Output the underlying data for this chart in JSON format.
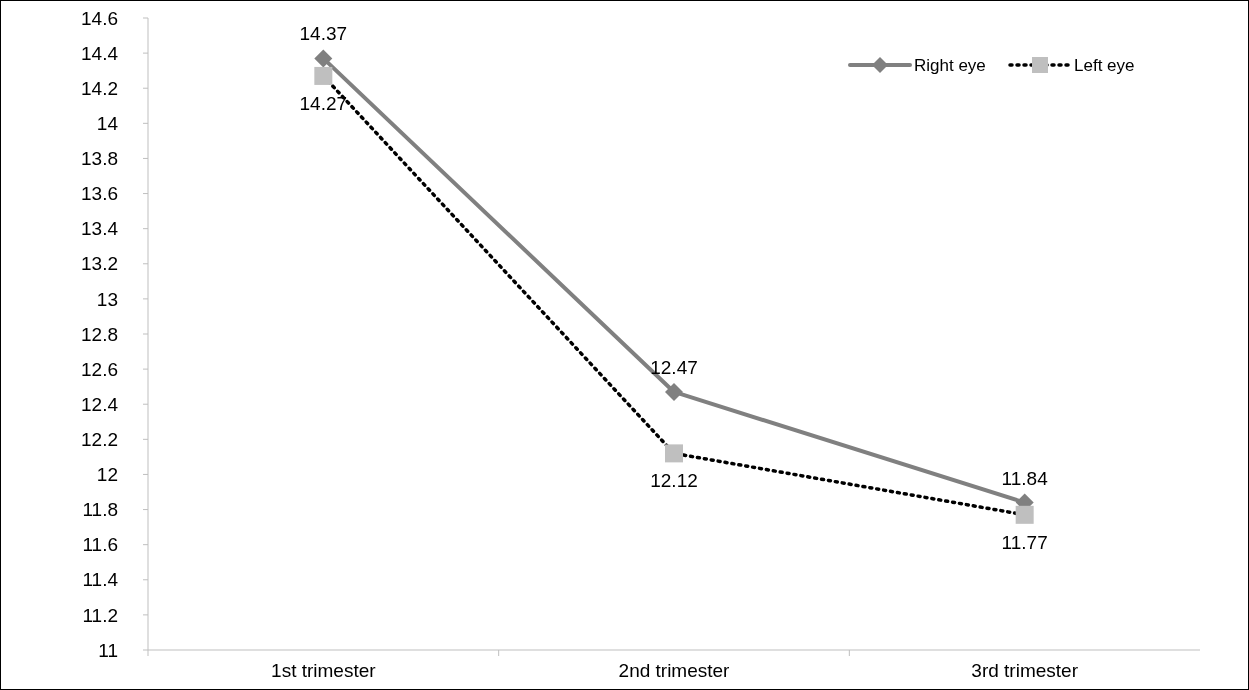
{
  "chart_data": {
    "type": "line",
    "categories": [
      "1st trimester",
      "2nd trimester",
      "3rd trimester"
    ],
    "series": [
      {
        "name": "Right eye",
        "color": "#808080",
        "values": [
          14.37,
          12.47,
          11.84
        ],
        "marker": "diamond",
        "line_style": "solid"
      },
      {
        "name": "Left eye",
        "color": "#000000",
        "values": [
          14.27,
          12.12,
          11.77
        ],
        "marker": "square",
        "line_style": "dotted"
      }
    ],
    "ylim": [
      11,
      14.6
    ],
    "yticks": [
      11,
      11.2,
      11.4,
      11.6,
      11.8,
      12,
      12.2,
      12.4,
      12.6,
      12.8,
      13,
      13.2,
      13.4,
      13.6,
      13.8,
      14,
      14.2,
      14.4,
      14.6
    ],
    "data_labels": true,
    "legend": "top right",
    "grid": false
  }
}
